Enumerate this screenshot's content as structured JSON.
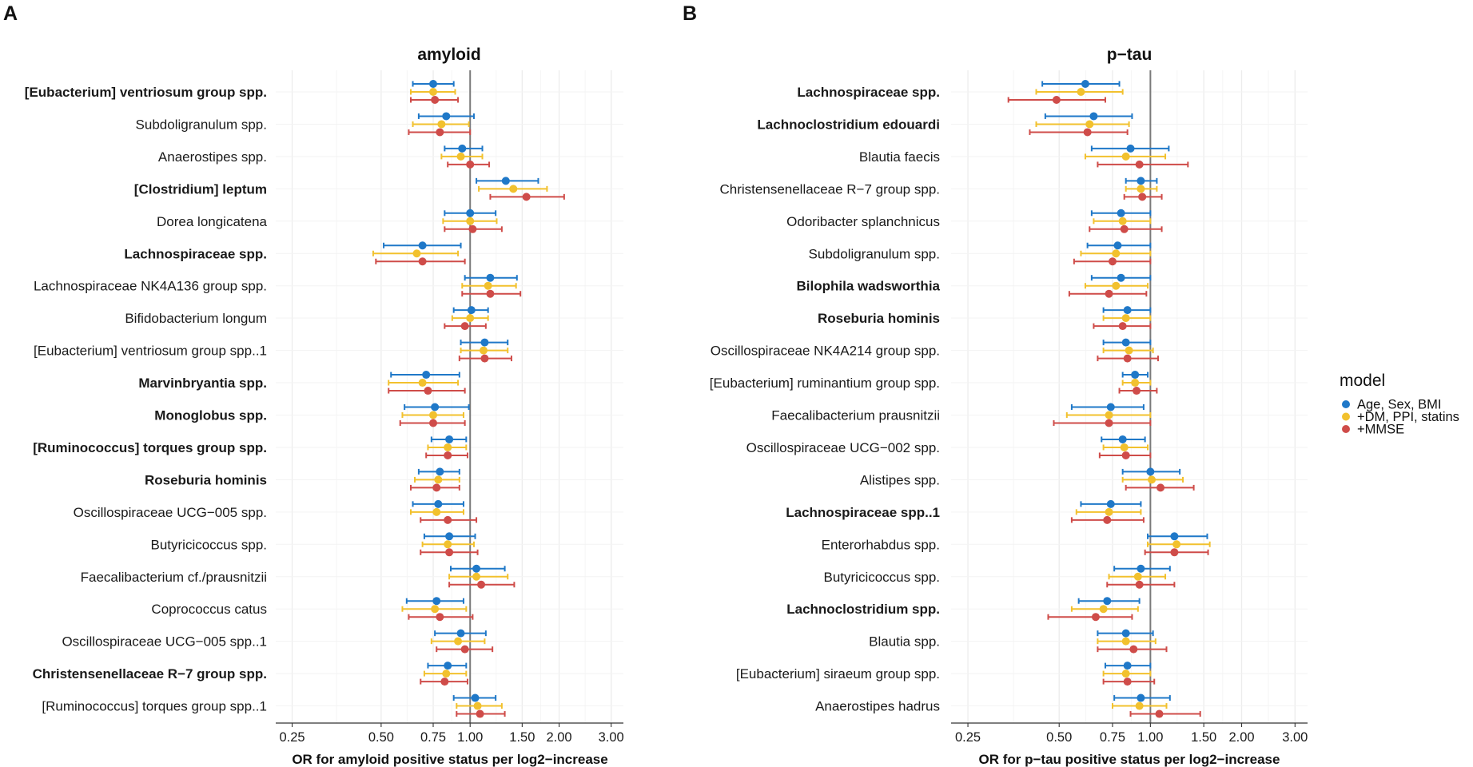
{
  "legend": {
    "title": "model",
    "items": [
      {
        "label": "Age, Sex, BMI",
        "color": "#1f78c8"
      },
      {
        "label": "+DM, PPI, statins",
        "color": "#f2c12e"
      },
      {
        "label": "+MMSE",
        "color": "#cf4c49"
      }
    ]
  },
  "chart_data": [
    {
      "type": "forest",
      "panel": "A",
      "title": "amyloid",
      "xlabel": "OR for amyloid positive status per log2−increase",
      "xscale": "log",
      "xlim": [
        0.22,
        3.3
      ],
      "xticks": [
        0.25,
        0.5,
        0.75,
        1.0,
        1.5,
        2.0,
        3.0
      ],
      "xtick_labels": [
        "0.25",
        "0.50",
        "0.75",
        "1.00",
        "1.50",
        "2.00",
        "3.00"
      ],
      "reference_line": 1.0,
      "series_names": [
        "Age, Sex, BMI",
        "+DM, PPI, statins",
        "+MMSE"
      ],
      "rows": [
        {
          "label": "[Eubacterium] ventriosum group spp.",
          "bold": true,
          "estimates": [
            [
              0.75,
              0.64,
              0.88
            ],
            [
              0.75,
              0.63,
              0.89
            ],
            [
              0.76,
              0.63,
              0.91
            ]
          ]
        },
        {
          "label": "Subdoligranulum spp.",
          "bold": false,
          "estimates": [
            [
              0.83,
              0.67,
              1.03
            ],
            [
              0.8,
              0.64,
              0.99
            ],
            [
              0.79,
              0.62,
              1.0
            ]
          ]
        },
        {
          "label": "Anaerostipes spp.",
          "bold": false,
          "estimates": [
            [
              0.94,
              0.82,
              1.1
            ],
            [
              0.93,
              0.8,
              1.1
            ],
            [
              1.0,
              0.84,
              1.16
            ]
          ]
        },
        {
          "label": "[Clostridium] leptum",
          "bold": true,
          "estimates": [
            [
              1.32,
              1.05,
              1.7
            ],
            [
              1.4,
              1.07,
              1.82
            ],
            [
              1.55,
              1.17,
              2.08
            ]
          ]
        },
        {
          "label": "Dorea longicatena",
          "bold": false,
          "estimates": [
            [
              1.0,
              0.82,
              1.22
            ],
            [
              1.0,
              0.81,
              1.23
            ],
            [
              1.02,
              0.82,
              1.28
            ]
          ]
        },
        {
          "label": "Lachnospiraceae spp.",
          "bold": true,
          "estimates": [
            [
              0.69,
              0.51,
              0.93
            ],
            [
              0.66,
              0.47,
              0.91
            ],
            [
              0.69,
              0.48,
              0.96
            ]
          ]
        },
        {
          "label": "Lachnospiraceae NK4A136 group spp.",
          "bold": false,
          "estimates": [
            [
              1.17,
              0.96,
              1.44
            ],
            [
              1.15,
              0.94,
              1.43
            ],
            [
              1.17,
              0.94,
              1.48
            ]
          ]
        },
        {
          "label": "Bifidobacterium longum",
          "bold": false,
          "estimates": [
            [
              1.01,
              0.88,
              1.15
            ],
            [
              1.0,
              0.87,
              1.15
            ],
            [
              0.96,
              0.82,
              1.13
            ]
          ]
        },
        {
          "label": "[Eubacterium] ventriosum group spp..1",
          "bold": false,
          "estimates": [
            [
              1.12,
              0.93,
              1.34
            ],
            [
              1.11,
              0.93,
              1.34
            ],
            [
              1.12,
              0.92,
              1.38
            ]
          ]
        },
        {
          "label": "Marvinbryantia spp.",
          "bold": true,
          "estimates": [
            [
              0.71,
              0.54,
              0.92
            ],
            [
              0.69,
              0.53,
              0.91
            ],
            [
              0.72,
              0.53,
              0.96
            ]
          ]
        },
        {
          "label": "Monoglobus spp.",
          "bold": true,
          "estimates": [
            [
              0.76,
              0.6,
              0.99
            ],
            [
              0.75,
              0.59,
              0.95
            ],
            [
              0.75,
              0.58,
              0.96
            ]
          ]
        },
        {
          "label": "[Ruminococcus] torques group spp.",
          "bold": true,
          "estimates": [
            [
              0.85,
              0.74,
              0.97
            ],
            [
              0.84,
              0.72,
              0.97
            ],
            [
              0.84,
              0.71,
              0.98
            ]
          ]
        },
        {
          "label": "Roseburia hominis",
          "bold": true,
          "estimates": [
            [
              0.79,
              0.67,
              0.92
            ],
            [
              0.78,
              0.65,
              0.92
            ],
            [
              0.77,
              0.63,
              0.92
            ]
          ]
        },
        {
          "label": "Oscillospiraceae UCG−005 spp.",
          "bold": false,
          "estimates": [
            [
              0.78,
              0.64,
              0.95
            ],
            [
              0.77,
              0.63,
              0.95
            ],
            [
              0.84,
              0.68,
              1.05
            ]
          ]
        },
        {
          "label": "Butyricicoccus spp.",
          "bold": false,
          "estimates": [
            [
              0.85,
              0.7,
              1.04
            ],
            [
              0.84,
              0.69,
              1.03
            ],
            [
              0.85,
              0.68,
              1.06
            ]
          ]
        },
        {
          "label": "Faecalibacterium cf./prausnitzii",
          "bold": false,
          "estimates": [
            [
              1.05,
              0.86,
              1.31
            ],
            [
              1.05,
              0.85,
              1.34
            ],
            [
              1.09,
              0.85,
              1.41
            ]
          ]
        },
        {
          "label": "Coprococcus catus",
          "bold": false,
          "estimates": [
            [
              0.77,
              0.61,
              0.95
            ],
            [
              0.76,
              0.59,
              0.97
            ],
            [
              0.79,
              0.62,
              1.02
            ]
          ]
        },
        {
          "label": "Oscillospiraceae UCG−005 spp..1",
          "bold": false,
          "estimates": [
            [
              0.93,
              0.76,
              1.13
            ],
            [
              0.91,
              0.74,
              1.12
            ],
            [
              0.96,
              0.77,
              1.19
            ]
          ]
        },
        {
          "label": "Christensenellaceae R−7 group spp.",
          "bold": true,
          "estimates": [
            [
              0.84,
              0.72,
              0.97
            ],
            [
              0.83,
              0.7,
              0.97
            ],
            [
              0.82,
              0.68,
              0.98
            ]
          ]
        },
        {
          "label": "[Ruminococcus] torques group spp..1",
          "bold": false,
          "estimates": [
            [
              1.04,
              0.88,
              1.22
            ],
            [
              1.06,
              0.9,
              1.28
            ],
            [
              1.08,
              0.9,
              1.31
            ]
          ]
        }
      ]
    },
    {
      "type": "forest",
      "panel": "B",
      "title": "p−tau",
      "xlabel": "OR for p−tau positive status per log2−increase",
      "xscale": "log",
      "xlim": [
        0.22,
        3.3
      ],
      "xticks": [
        0.25,
        0.5,
        0.75,
        1.0,
        1.5,
        2.0,
        3.0
      ],
      "xtick_labels": [
        "0.25",
        "0.50",
        "0.75",
        "1.00",
        "1.50",
        "2.00",
        "3.00"
      ],
      "reference_line": 1.0,
      "series_names": [
        "Age, Sex, BMI",
        "+DM, PPI, statins",
        "+MMSE"
      ],
      "rows": [
        {
          "label": "Lachnospiraceae spp.",
          "bold": true,
          "estimates": [
            [
              0.61,
              0.44,
              0.79
            ],
            [
              0.59,
              0.42,
              0.81
            ],
            [
              0.49,
              0.34,
              0.71
            ]
          ]
        },
        {
          "label": "Lachnoclostridium edouardi",
          "bold": true,
          "estimates": [
            [
              0.65,
              0.45,
              0.87
            ],
            [
              0.63,
              0.42,
              0.85
            ],
            [
              0.62,
              0.4,
              0.84
            ]
          ]
        },
        {
          "label": "Blautia faecis",
          "bold": false,
          "estimates": [
            [
              0.86,
              0.64,
              1.15
            ],
            [
              0.83,
              0.61,
              1.12
            ],
            [
              0.92,
              0.67,
              1.33
            ]
          ]
        },
        {
          "label": "Christensenellaceae R−7 group spp.",
          "bold": false,
          "estimates": [
            [
              0.93,
              0.83,
              1.05
            ],
            [
              0.93,
              0.83,
              1.05
            ],
            [
              0.94,
              0.82,
              1.09
            ]
          ]
        },
        {
          "label": "Odoribacter splanchnicus",
          "bold": false,
          "estimates": [
            [
              0.8,
              0.64,
              1.0
            ],
            [
              0.81,
              0.65,
              1.0
            ],
            [
              0.82,
              0.63,
              1.09
            ]
          ]
        },
        {
          "label": "Subdoligranulum spp.",
          "bold": false,
          "estimates": [
            [
              0.78,
              0.62,
              1.0
            ],
            [
              0.77,
              0.59,
              1.0
            ],
            [
              0.75,
              0.56,
              1.0
            ]
          ]
        },
        {
          "label": "Bilophila wadsworthia",
          "bold": true,
          "estimates": [
            [
              0.8,
              0.64,
              1.0
            ],
            [
              0.77,
              0.61,
              0.98
            ],
            [
              0.73,
              0.54,
              0.97
            ]
          ]
        },
        {
          "label": "Roseburia hominis",
          "bold": true,
          "estimates": [
            [
              0.84,
              0.7,
              1.0
            ],
            [
              0.83,
              0.7,
              1.0
            ],
            [
              0.81,
              0.65,
              1.0
            ]
          ]
        },
        {
          "label": "Oscillospiraceae NK4A214 group spp.",
          "bold": false,
          "estimates": [
            [
              0.83,
              0.7,
              1.0
            ],
            [
              0.85,
              0.7,
              1.02
            ],
            [
              0.84,
              0.67,
              1.06
            ]
          ]
        },
        {
          "label": "[Eubacterium] ruminantium group spp.",
          "bold": false,
          "estimates": [
            [
              0.89,
              0.81,
              0.98
            ],
            [
              0.89,
              0.81,
              1.0
            ],
            [
              0.9,
              0.79,
              1.05
            ]
          ]
        },
        {
          "label": "Faecalibacterium prausnitzii",
          "bold": false,
          "estimates": [
            [
              0.74,
              0.55,
              0.95
            ],
            [
              0.73,
              0.53,
              1.0
            ],
            [
              0.73,
              0.48,
              1.0
            ]
          ]
        },
        {
          "label": "Oscillospiraceae UCG−002 spp.",
          "bold": false,
          "estimates": [
            [
              0.81,
              0.69,
              0.96
            ],
            [
              0.82,
              0.7,
              0.98
            ],
            [
              0.83,
              0.68,
              1.0
            ]
          ]
        },
        {
          "label": "Alistipes spp.",
          "bold": false,
          "estimates": [
            [
              1.0,
              0.81,
              1.25
            ],
            [
              1.01,
              0.81,
              1.28
            ],
            [
              1.08,
              0.83,
              1.39
            ]
          ]
        },
        {
          "label": "Lachnospiraceae spp..1",
          "bold": true,
          "estimates": [
            [
              0.74,
              0.59,
              0.93
            ],
            [
              0.73,
              0.57,
              0.93
            ],
            [
              0.72,
              0.55,
              0.95
            ]
          ]
        },
        {
          "label": "Enterorhabdus spp.",
          "bold": false,
          "estimates": [
            [
              1.2,
              0.98,
              1.54
            ],
            [
              1.22,
              0.98,
              1.57
            ],
            [
              1.2,
              0.96,
              1.55
            ]
          ]
        },
        {
          "label": "Butyricicoccus spp.",
          "bold": false,
          "estimates": [
            [
              0.93,
              0.76,
              1.16
            ],
            [
              0.91,
              0.73,
              1.12
            ],
            [
              0.92,
              0.72,
              1.2
            ]
          ]
        },
        {
          "label": "Lachnoclostridium spp.",
          "bold": true,
          "estimates": [
            [
              0.72,
              0.58,
              0.92
            ],
            [
              0.7,
              0.55,
              0.91
            ],
            [
              0.66,
              0.46,
              0.87
            ]
          ]
        },
        {
          "label": "Blautia spp.",
          "bold": false,
          "estimates": [
            [
              0.83,
              0.67,
              1.02
            ],
            [
              0.83,
              0.67,
              1.04
            ],
            [
              0.88,
              0.67,
              1.13
            ]
          ]
        },
        {
          "label": "[Eubacterium] siraeum group spp.",
          "bold": false,
          "estimates": [
            [
              0.84,
              0.71,
              1.0
            ],
            [
              0.83,
              0.7,
              1.0
            ],
            [
              0.84,
              0.7,
              1.03
            ]
          ]
        },
        {
          "label": "Anaerostipes hadrus",
          "bold": false,
          "estimates": [
            [
              0.93,
              0.76,
              1.16
            ],
            [
              0.92,
              0.75,
              1.13
            ],
            [
              1.07,
              0.86,
              1.46
            ]
          ]
        }
      ]
    }
  ]
}
